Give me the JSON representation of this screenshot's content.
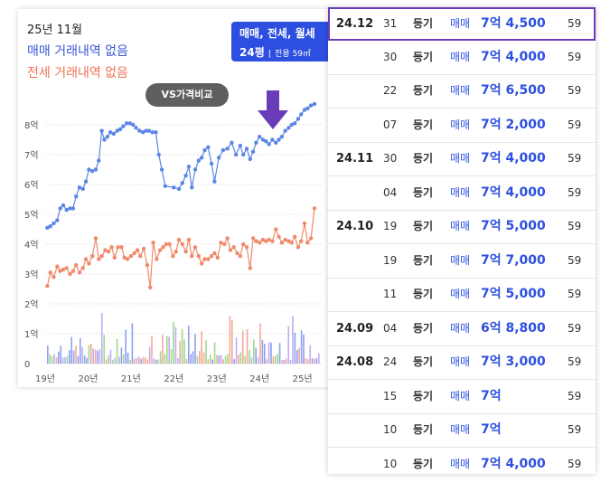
{
  "chart_panel": {
    "month_label": "25년 11월",
    "sale_status": "매매 거래내역 없음",
    "jeonse_status": "전세 거래내역 없음",
    "filter": {
      "types": "매매, 전세, 월세",
      "size": "24평",
      "separator": "|",
      "area": "전용 59㎡"
    },
    "compare_button": "VS가격비교",
    "colors": {
      "sale": "#5b86e5",
      "jeonse": "#f08a6a",
      "accent": "#2d4fe0",
      "arrow": "#6a3db8",
      "highlight_border": "#6a3db8"
    },
    "arrow_icon": "down-arrow-icon"
  },
  "chart_data": {
    "type": "line",
    "ylabel_ticks": [
      "0",
      "1억",
      "2억",
      "3억",
      "4억",
      "5억",
      "6억",
      "7억",
      "8억"
    ],
    "xlabel_ticks": [
      "19년",
      "20년",
      "21년",
      "22년",
      "23년",
      "24년",
      "25년"
    ],
    "ylim": [
      0,
      8.5
    ],
    "xlim": [
      2019.0,
      2025.45
    ],
    "grid": "horizontal",
    "series": [
      {
        "key": "sale",
        "x": [
          2019.05,
          2019.12,
          2019.2,
          2019.28,
          2019.35,
          2019.42,
          2019.5,
          2019.58,
          2019.65,
          2019.72,
          2019.8,
          2019.88,
          2019.95,
          2020.02,
          2020.1,
          2020.18,
          2020.25,
          2020.32,
          2020.38,
          2020.45,
          2020.52,
          2020.6,
          2020.68,
          2020.75,
          2020.82,
          2020.9,
          2020.98,
          2021.05,
          2021.12,
          2021.2,
          2021.28,
          2021.35,
          2021.42,
          2021.5,
          2021.58,
          2021.65,
          2021.72,
          2021.8,
          2022.0,
          2022.12,
          2022.2,
          2022.28,
          2022.35,
          2022.42,
          2022.5,
          2022.58,
          2022.65,
          2022.72,
          2022.8,
          2022.88,
          2022.95,
          2023.05,
          2023.15,
          2023.25,
          2023.35,
          2023.45,
          2023.55,
          2023.62,
          2023.7,
          2023.78,
          2023.85,
          2023.92,
          2024.0,
          2024.08,
          2024.15,
          2024.22,
          2024.3,
          2024.38,
          2024.45,
          2024.52,
          2024.6,
          2024.68,
          2024.75,
          2024.82,
          2024.9,
          2024.97,
          2025.05,
          2025.12,
          2025.2,
          2025.28
        ],
        "y": [
          4.55,
          4.6,
          4.7,
          4.8,
          5.2,
          5.3,
          5.15,
          5.2,
          5.2,
          5.6,
          5.9,
          5.85,
          6.1,
          6.5,
          6.45,
          6.5,
          6.8,
          7.8,
          7.5,
          7.6,
          7.75,
          7.7,
          7.8,
          7.85,
          7.95,
          8.05,
          8.05,
          8.0,
          7.9,
          7.8,
          7.75,
          7.8,
          7.8,
          7.75,
          7.75,
          7.0,
          6.5,
          5.95,
          5.9,
          5.85,
          6.05,
          6.3,
          6.6,
          5.9,
          6.5,
          6.8,
          6.9,
          7.15,
          7.25,
          6.7,
          6.1,
          6.9,
          7.15,
          7.2,
          7.4,
          7.0,
          7.3,
          7.0,
          7.2,
          6.85,
          7.1,
          7.4,
          7.6,
          7.5,
          7.45,
          7.35,
          7.5,
          7.4,
          7.5,
          7.6,
          7.8,
          7.9,
          8.0,
          8.05,
          8.2,
          8.35,
          8.5,
          8.55,
          8.65,
          8.7
        ]
      },
      {
        "key": "jeonse",
        "x": [
          2019.05,
          2019.12,
          2019.2,
          2019.28,
          2019.35,
          2019.42,
          2019.5,
          2019.58,
          2019.65,
          2019.72,
          2019.8,
          2019.88,
          2019.95,
          2020.02,
          2020.1,
          2020.18,
          2020.25,
          2020.32,
          2020.4,
          2020.48,
          2020.55,
          2020.62,
          2020.7,
          2020.78,
          2020.85,
          2020.92,
          2021.0,
          2021.08,
          2021.15,
          2021.22,
          2021.3,
          2021.38,
          2021.45,
          2021.52,
          2021.6,
          2021.68,
          2021.75,
          2021.82,
          2021.9,
          2021.98,
          2022.05,
          2022.12,
          2022.2,
          2022.28,
          2022.35,
          2022.42,
          2022.5,
          2022.58,
          2022.65,
          2022.72,
          2022.8,
          2022.88,
          2022.95,
          2023.02,
          2023.1,
          2023.18,
          2023.25,
          2023.32,
          2023.4,
          2023.48,
          2023.55,
          2023.62,
          2023.7,
          2023.78,
          2023.85,
          2023.92,
          2024.0,
          2024.08,
          2024.15,
          2024.22,
          2024.3,
          2024.38,
          2024.45,
          2024.52,
          2024.6,
          2024.68,
          2024.75,
          2024.82,
          2024.9,
          2024.97,
          2025.05,
          2025.12,
          2025.2,
          2025.28
        ],
        "y": [
          2.6,
          3.05,
          2.9,
          3.25,
          3.1,
          3.15,
          3.2,
          3.0,
          3.1,
          3.3,
          3.05,
          3.2,
          3.5,
          3.35,
          3.6,
          4.2,
          3.5,
          3.6,
          3.8,
          3.75,
          3.9,
          3.55,
          3.9,
          3.9,
          3.55,
          3.5,
          3.6,
          3.7,
          3.8,
          3.6,
          3.85,
          3.3,
          2.55,
          4.05,
          3.5,
          3.8,
          3.9,
          4.0,
          4.0,
          3.6,
          3.75,
          4.15,
          4.0,
          3.75,
          4.15,
          3.6,
          3.9,
          3.6,
          3.35,
          3.5,
          3.5,
          3.6,
          3.7,
          3.55,
          4.05,
          4.0,
          4.2,
          3.8,
          3.9,
          3.7,
          3.6,
          4.0,
          3.9,
          3.2,
          4.2,
          4.1,
          4.05,
          4.15,
          4.1,
          4.15,
          4.1,
          4.5,
          4.25,
          4.05,
          4.15,
          4.1,
          4.05,
          4.25,
          3.9,
          4.1,
          4.7,
          4.05,
          4.2,
          5.2
        ]
      }
    ]
  },
  "transactions": [
    {
      "ym": "24.12",
      "day": "31",
      "reg": "등기",
      "type": "매매",
      "price": "7억 4,500",
      "area": "59"
    },
    {
      "ym": "",
      "day": "30",
      "reg": "등기",
      "type": "매매",
      "price": "7억 4,000",
      "area": "59"
    },
    {
      "ym": "",
      "day": "22",
      "reg": "등기",
      "type": "매매",
      "price": "7억 6,500",
      "area": "59"
    },
    {
      "ym": "",
      "day": "07",
      "reg": "등기",
      "type": "매매",
      "price": "7억 2,000",
      "area": "59"
    },
    {
      "ym": "24.11",
      "day": "30",
      "reg": "등기",
      "type": "매매",
      "price": "7억 4,000",
      "area": "59"
    },
    {
      "ym": "",
      "day": "04",
      "reg": "등기",
      "type": "매매",
      "price": "7억 4,000",
      "area": "59"
    },
    {
      "ym": "24.10",
      "day": "19",
      "reg": "등기",
      "type": "매매",
      "price": "7억 5,000",
      "area": "59"
    },
    {
      "ym": "",
      "day": "19",
      "reg": "등기",
      "type": "매매",
      "price": "7억 7,000",
      "area": "59"
    },
    {
      "ym": "",
      "day": "11",
      "reg": "등기",
      "type": "매매",
      "price": "7억 5,000",
      "area": "59"
    },
    {
      "ym": "24.09",
      "day": "04",
      "reg": "등기",
      "type": "매매",
      "price": "6억 8,800",
      "area": "59"
    },
    {
      "ym": "24.08",
      "day": "24",
      "reg": "등기",
      "type": "매매",
      "price": "7억 3,000",
      "area": "59"
    },
    {
      "ym": "",
      "day": "15",
      "reg": "등기",
      "type": "매매",
      "price": "7억",
      "area": "59"
    },
    {
      "ym": "",
      "day": "10",
      "reg": "등기",
      "type": "매매",
      "price": "7억",
      "area": "59"
    },
    {
      "ym": "",
      "day": "10",
      "reg": "등기",
      "type": "매매",
      "price": "7억 4,000",
      "area": "59"
    }
  ]
}
